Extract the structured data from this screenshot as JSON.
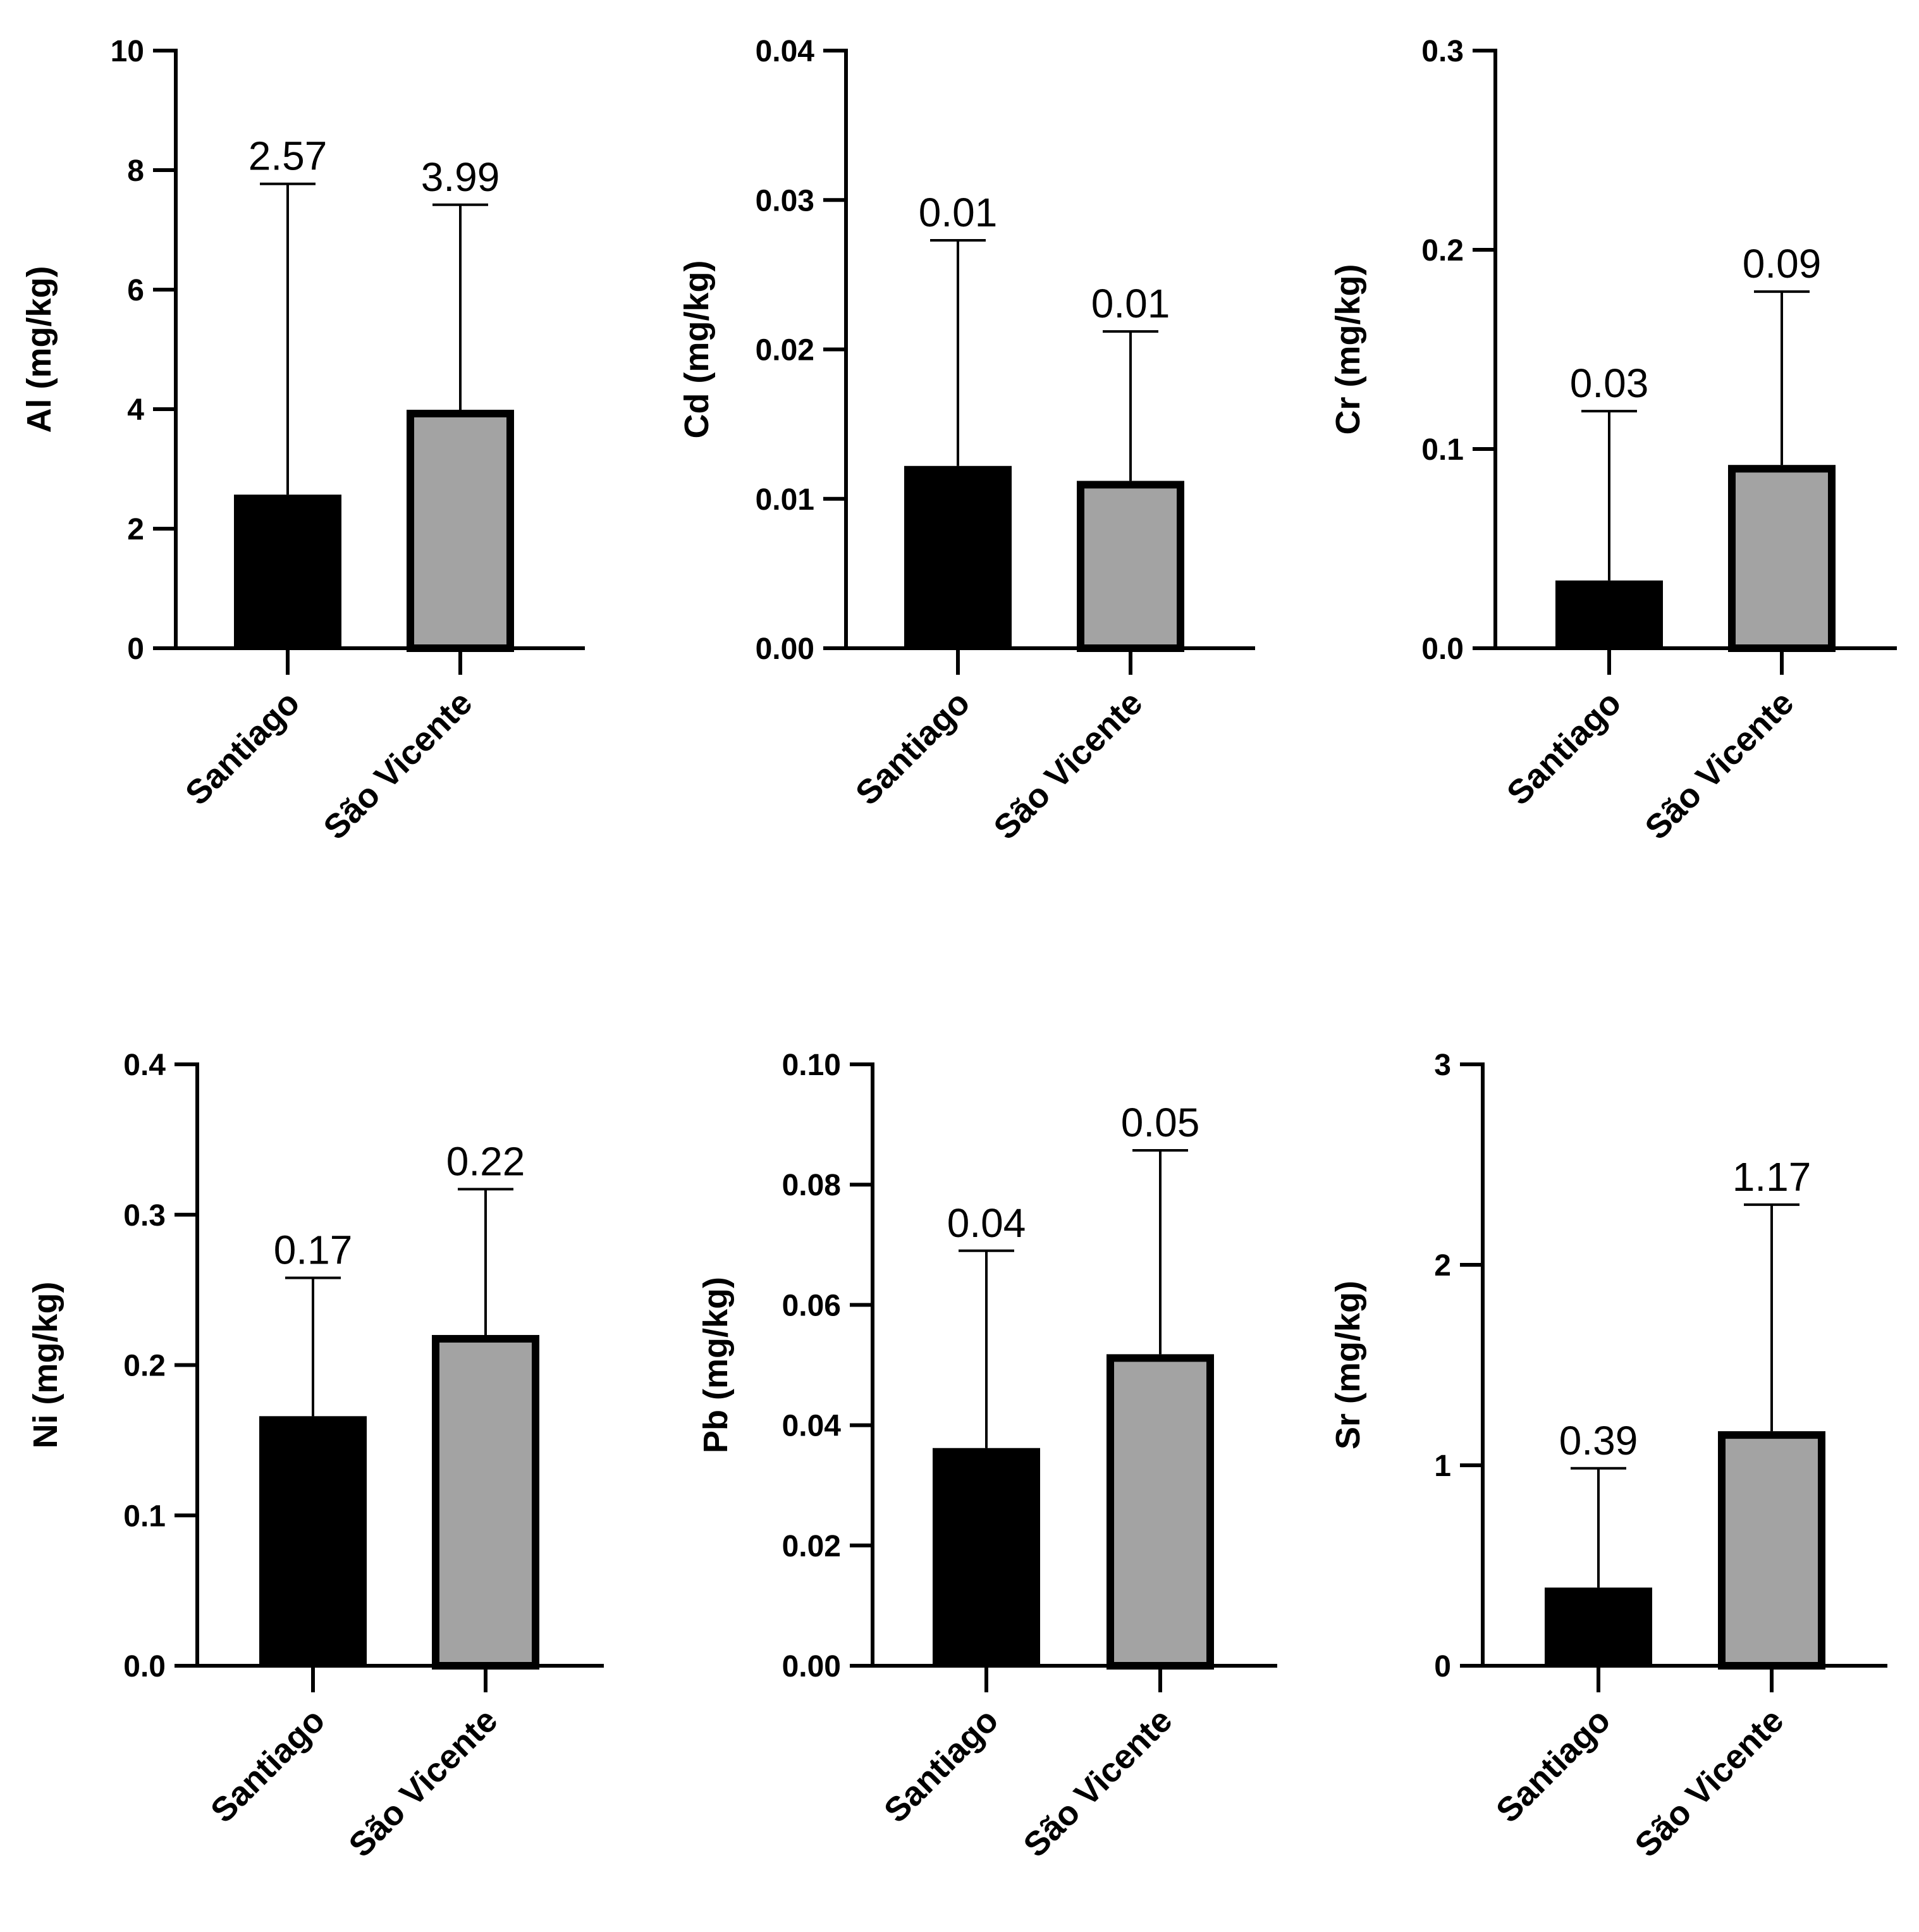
{
  "chart_data": [
    {
      "type": "bar",
      "ylabel": "Al (mg/kg)",
      "categories": [
        "Santiago",
        "São Vicente"
      ],
      "values": [
        2.57,
        3.99
      ],
      "error_upper": [
        7.77,
        7.42
      ],
      "value_labels": [
        "2.57",
        "3.99"
      ],
      "ylim": [
        0,
        10
      ],
      "yticks": [
        0,
        2,
        4,
        6,
        8,
        10
      ],
      "ytick_labels": [
        "0",
        "2",
        "4",
        "6",
        "8",
        "10"
      ],
      "bar_colors": [
        "#000000",
        "#a3a3a3"
      ]
    },
    {
      "type": "bar",
      "ylabel": "Cd (mg/kg)",
      "categories": [
        "Santiago",
        "São Vicente"
      ],
      "values": [
        0.0122,
        0.0112
      ],
      "error_upper": [
        0.0273,
        0.0212
      ],
      "value_labels": [
        "0.01",
        "0.01"
      ],
      "ylim": [
        0,
        0.04
      ],
      "yticks": [
        0,
        0.01,
        0.02,
        0.03,
        0.04
      ],
      "ytick_labels": [
        "0.00",
        "0.01",
        "0.02",
        "0.03",
        "0.04"
      ],
      "bar_colors": [
        "#000000",
        "#a3a3a3"
      ]
    },
    {
      "type": "bar",
      "ylabel": "Cr (mg/kg)",
      "categories": [
        "Santiago",
        "São Vicente"
      ],
      "values": [
        0.034,
        0.092
      ],
      "error_upper": [
        0.119,
        0.179
      ],
      "value_labels": [
        "0.03",
        "0.09"
      ],
      "ylim": [
        0,
        0.3
      ],
      "yticks": [
        0,
        0.1,
        0.2,
        0.3
      ],
      "ytick_labels": [
        "0.0",
        "0.1",
        "0.2",
        "0.3"
      ],
      "bar_colors": [
        "#000000",
        "#a3a3a3"
      ]
    },
    {
      "type": "bar",
      "ylabel": "Ni (mg/kg)",
      "categories": [
        "Santiago",
        "São Vicente"
      ],
      "values": [
        0.166,
        0.22
      ],
      "error_upper": [
        0.258,
        0.317
      ],
      "value_labels": [
        "0.17",
        "0.22"
      ],
      "ylim": [
        0,
        0.4
      ],
      "yticks": [
        0,
        0.1,
        0.2,
        0.3,
        0.4
      ],
      "ytick_labels": [
        "0.0",
        "0.1",
        "0.2",
        "0.3",
        "0.4"
      ],
      "bar_colors": [
        "#000000",
        "#a3a3a3"
      ]
    },
    {
      "type": "bar",
      "ylabel": "Pb (mg/kg)",
      "categories": [
        "Santiago",
        "São Vicente"
      ],
      "values": [
        0.0362,
        0.0518
      ],
      "error_upper": [
        0.069,
        0.0857
      ],
      "value_labels": [
        "0.04",
        "0.05"
      ],
      "ylim": [
        0,
        0.1
      ],
      "yticks": [
        0,
        0.02,
        0.04,
        0.06,
        0.08,
        0.1
      ],
      "ytick_labels": [
        "0.00",
        "0.02",
        "0.04",
        "0.06",
        "0.08",
        "0.10"
      ],
      "bar_colors": [
        "#000000",
        "#a3a3a3"
      ]
    },
    {
      "type": "bar",
      "ylabel": "Sr (mg/kg)",
      "categories": [
        "Santiago",
        "São Vicente"
      ],
      "values": [
        0.39,
        1.17
      ],
      "error_upper": [
        0.985,
        2.3
      ],
      "value_labels": [
        "0.39",
        "1.17"
      ],
      "ylim": [
        0,
        3
      ],
      "yticks": [
        0,
        1,
        2,
        3
      ],
      "ytick_labels": [
        "0",
        "1",
        "2",
        "3"
      ],
      "bar_colors": [
        "#000000",
        "#a3a3a3"
      ]
    }
  ]
}
